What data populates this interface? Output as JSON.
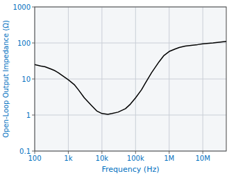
{
  "chart_data": {
    "type": "line",
    "log": true,
    "grid": true,
    "xlabel": "Frequency (Hz)",
    "ylabel": "Open-Loop Output Impedance (Ω)",
    "color": "#000000",
    "xlim": [
      100,
      50000000
    ],
    "ylim": [
      0.1,
      1000
    ],
    "xticks": [
      100,
      {
        "value": 1000,
        "label": "1k"
      },
      {
        "value": 10000,
        "label": "10k"
      },
      {
        "value": 100000,
        "label": "100k"
      },
      {
        "value": 1000000,
        "label": "1M"
      },
      {
        "value": 10000000,
        "label": "10M"
      }
    ],
    "yticks": [
      0.1,
      1,
      10,
      100,
      1000
    ],
    "x": [
      100,
      150,
      200,
      300,
      400,
      500,
      700,
      1000,
      1500,
      2000,
      3000,
      5000,
      7000,
      10000,
      15000,
      20000,
      30000,
      50000,
      70000,
      100000,
      150000,
      200000,
      300000,
      500000,
      700000,
      1000000,
      1500000,
      2000000,
      3000000,
      5000000,
      7000000,
      10000000,
      20000000,
      50000000
    ],
    "values": [
      25,
      23,
      22,
      19,
      17,
      15,
      12,
      9.5,
      7.0,
      5.0,
      3.0,
      1.8,
      1.3,
      1.1,
      1.05,
      1.1,
      1.2,
      1.5,
      2.0,
      3.0,
      5.0,
      8.0,
      15,
      30,
      45,
      58,
      68,
      75,
      82,
      87,
      90,
      95,
      100,
      110
    ]
  }
}
